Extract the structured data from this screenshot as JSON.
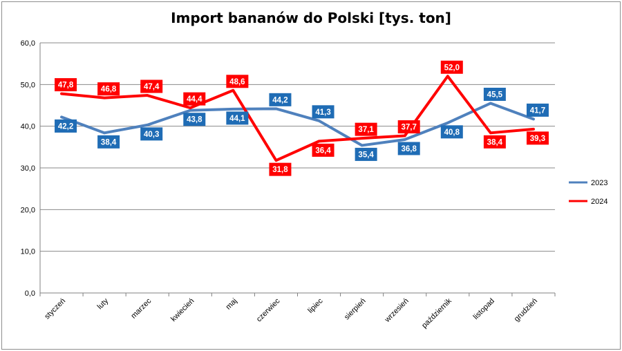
{
  "chart_data": {
    "type": "line",
    "title": "Import bananów do Polski [tys. ton]",
    "xlabel": "",
    "ylabel": "",
    "ylim": [
      0,
      60
    ],
    "ytick_labels": [
      "0,0",
      "10,0",
      "20,0",
      "30,0",
      "40,0",
      "50,0",
      "60,0"
    ],
    "grid": "horizontal",
    "legend_position": "right",
    "categories": [
      "styczeń",
      "luty",
      "marzec",
      "kwiecień",
      "maj",
      "czerwiec",
      "lipiec",
      "sierpień",
      "wrzesień",
      "październik",
      "listopad",
      "grudzień"
    ],
    "series": [
      {
        "name": "2023",
        "color": "#4f81bd",
        "label_color": "#1f6cb5",
        "values": [
          42.2,
          38.4,
          40.3,
          43.8,
          44.1,
          44.2,
          41.3,
          35.4,
          36.8,
          40.8,
          45.5,
          41.7
        ],
        "labels": [
          "42,2",
          "38,4",
          "40,3",
          "43,8",
          "44,1",
          "44,2",
          "41,3",
          "35,4",
          "36,8",
          "40,8",
          "45,5",
          "41,7"
        ]
      },
      {
        "name": "2024",
        "color": "#ff0000",
        "label_color": "#ff0000",
        "values": [
          47.8,
          46.8,
          47.4,
          44.4,
          48.6,
          31.8,
          36.4,
          37.1,
          37.7,
          52.0,
          38.4,
          39.3
        ],
        "labels": [
          "47,8",
          "46,8",
          "47,4",
          "44,4",
          "48,6",
          "31,8",
          "36,4",
          "37,1",
          "37,7",
          "52,0",
          "38,4",
          "39,3"
        ]
      }
    ]
  }
}
